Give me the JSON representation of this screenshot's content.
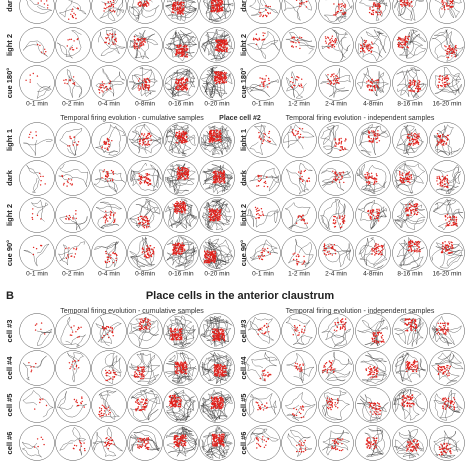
{
  "panel_a": {
    "top_rows": [
      "dar",
      "light 2",
      "cue 180°"
    ],
    "top_cols_left": [
      "0-1 min",
      "0-2 min",
      "0-4 min",
      "0-8min",
      "0-16 min",
      "0-20 min"
    ],
    "top_cols_right": [
      "0-1 min",
      "1-2 min",
      "2-4 min",
      "4-8min",
      "8-16 min",
      "16-20 min"
    ],
    "heading_left": "Temporal firing evolution - cumulative samples",
    "heading_center": "Place cell #2",
    "heading_right": "Temporal firing evolution - independent samples",
    "rows": [
      "light 1",
      "dark",
      "light 2",
      "cue 90°"
    ],
    "cols_left": [
      "0-1 min",
      "0-2 min",
      "0-4 min",
      "0-8min",
      "0-16 min",
      "0-20 min"
    ],
    "cols_right": [
      "0-1 min",
      "1-2 min",
      "2-4 min",
      "4-8min",
      "8-16 min",
      "16-20 min"
    ]
  },
  "panel_b": {
    "letter": "B",
    "title": "Place cells in the anterior claustrum",
    "heading_left": "Temporal firing evolution - cumulative samples",
    "heading_right": "Temporal firing evolution - independent samples",
    "rows": [
      "cell #3",
      "cell #4",
      "cell #5",
      "cell #6"
    ]
  }
}
